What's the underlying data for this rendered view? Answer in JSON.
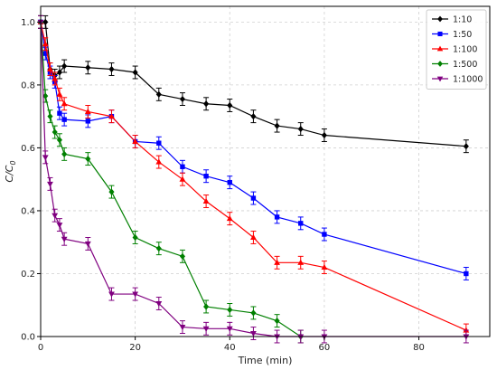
{
  "chart_data": {
    "type": "line",
    "title": "",
    "xlabel": "Time (min)",
    "ylabel_main": "C/C",
    "ylabel_sub": "0",
    "xlim": [
      0,
      95
    ],
    "ylim": [
      0,
      1.05
    ],
    "xticks": [
      0,
      20,
      40,
      60,
      80
    ],
    "yticks": [
      0.0,
      0.2,
      0.4,
      0.6,
      0.8,
      1.0
    ],
    "xtick_labels": [
      "0",
      "20",
      "40",
      "60",
      "80"
    ],
    "ytick_labels": [
      "0.0",
      "0.2",
      "0.4",
      "0.6",
      "0.8",
      "1.0"
    ],
    "grid": true,
    "legend_position": "top-right",
    "series": [
      {
        "name": "1:10",
        "color": "#000000",
        "marker": "diamond",
        "x": [
          0,
          1,
          2,
          3,
          4,
          5,
          10,
          15,
          20,
          25,
          30,
          35,
          40,
          45,
          50,
          55,
          60,
          90
        ],
        "y": [
          1.0,
          1.0,
          0.85,
          0.83,
          0.84,
          0.86,
          0.855,
          0.85,
          0.84,
          0.77,
          0.755,
          0.74,
          0.735,
          0.7,
          0.67,
          0.66,
          0.64,
          0.605
        ],
        "err": [
          0.02,
          0.02,
          0.02,
          0.02,
          0.02,
          0.02,
          0.02,
          0.02,
          0.02,
          0.02,
          0.02,
          0.02,
          0.02,
          0.02,
          0.02,
          0.02,
          0.02,
          0.02
        ]
      },
      {
        "name": "1:50",
        "color": "#0000ff",
        "marker": "square",
        "x": [
          0,
          1,
          2,
          3,
          4,
          5,
          10,
          15,
          20,
          25,
          30,
          35,
          40,
          45,
          50,
          55,
          60,
          90
        ],
        "y": [
          1.0,
          0.9,
          0.84,
          0.81,
          0.71,
          0.69,
          0.685,
          0.7,
          0.62,
          0.615,
          0.54,
          0.51,
          0.49,
          0.44,
          0.38,
          0.36,
          0.325,
          0.2
        ],
        "err": [
          0.02,
          0.02,
          0.02,
          0.02,
          0.02,
          0.02,
          0.02,
          0.02,
          0.02,
          0.02,
          0.02,
          0.02,
          0.02,
          0.02,
          0.02,
          0.02,
          0.02,
          0.02
        ]
      },
      {
        "name": "1:100",
        "color": "#ff0000",
        "marker": "triangle-up",
        "x": [
          0,
          1,
          2,
          3,
          4,
          5,
          10,
          15,
          20,
          25,
          30,
          35,
          40,
          45,
          50,
          55,
          60,
          90
        ],
        "y": [
          1.0,
          0.93,
          0.85,
          0.82,
          0.77,
          0.74,
          0.715,
          0.7,
          0.62,
          0.555,
          0.5,
          0.43,
          0.375,
          0.315,
          0.235,
          0.235,
          0.22,
          0.02
        ],
        "err": [
          0.02,
          0.02,
          0.02,
          0.02,
          0.02,
          0.02,
          0.02,
          0.02,
          0.02,
          0.02,
          0.02,
          0.02,
          0.02,
          0.02,
          0.02,
          0.02,
          0.02,
          0.02
        ]
      },
      {
        "name": "1:500",
        "color": "#008000",
        "marker": "diamond",
        "x": [
          0,
          1,
          2,
          3,
          4,
          5,
          10,
          15,
          20,
          25,
          30,
          35,
          40,
          45,
          50,
          55
        ],
        "y": [
          1.0,
          0.765,
          0.7,
          0.65,
          0.625,
          0.58,
          0.565,
          0.46,
          0.315,
          0.28,
          0.255,
          0.095,
          0.085,
          0.075,
          0.05,
          0.0
        ],
        "err": [
          0.02,
          0.02,
          0.02,
          0.02,
          0.02,
          0.02,
          0.02,
          0.02,
          0.02,
          0.02,
          0.02,
          0.02,
          0.02,
          0.02,
          0.02,
          0.02
        ]
      },
      {
        "name": "1:1000",
        "color": "#800080",
        "marker": "triangle-down",
        "x": [
          0,
          1,
          2,
          3,
          4,
          5,
          10,
          15,
          20,
          25,
          30,
          35,
          40,
          45,
          50,
          55,
          60,
          90
        ],
        "y": [
          1.0,
          0.57,
          0.485,
          0.385,
          0.355,
          0.31,
          0.295,
          0.135,
          0.135,
          0.105,
          0.03,
          0.025,
          0.025,
          0.01,
          0.0,
          0.0,
          0.0,
          0.0
        ],
        "err": [
          0.02,
          0.02,
          0.02,
          0.02,
          0.02,
          0.02,
          0.02,
          0.02,
          0.02,
          0.02,
          0.02,
          0.02,
          0.02,
          0.02,
          0.02,
          0.02,
          0.02,
          0.02
        ]
      }
    ]
  }
}
